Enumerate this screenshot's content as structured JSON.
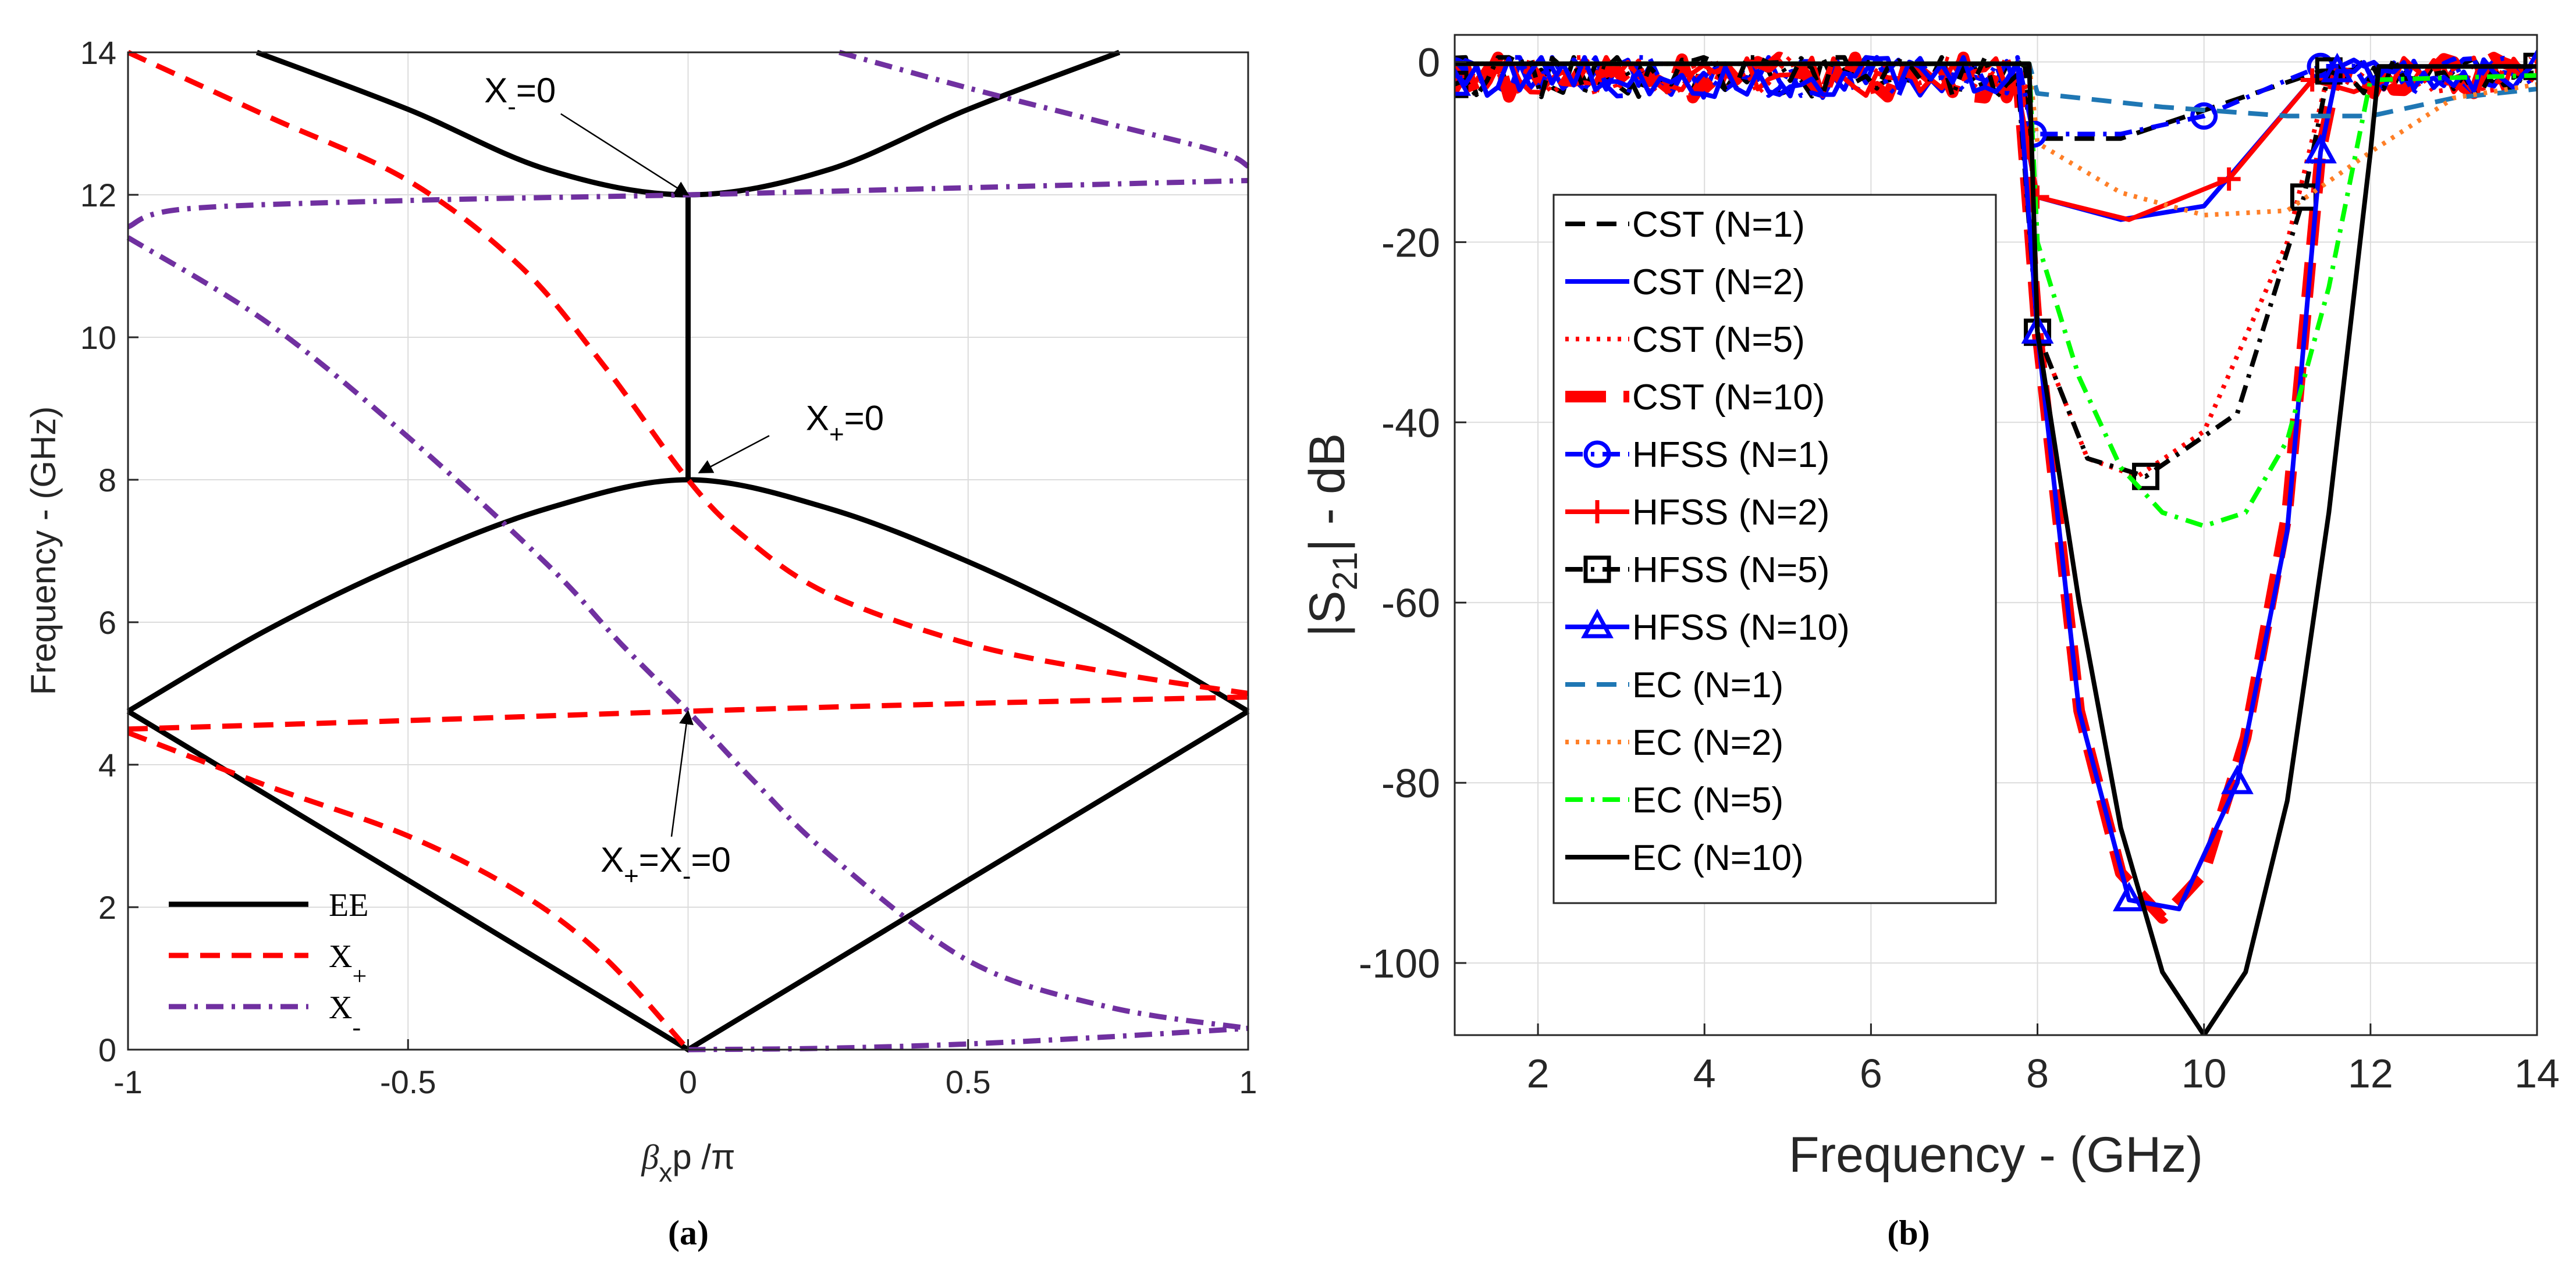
{
  "chart_data": [
    {
      "panel": "a",
      "type": "line",
      "caption": "(a)",
      "xlabel_parts": [
        "β",
        "x",
        "p /π"
      ],
      "ylabel": "Frequency - (GHz)",
      "xlim": [
        -1,
        1
      ],
      "ylim": [
        0,
        14
      ],
      "xticks": [
        -1,
        -0.5,
        0,
        0.5,
        1
      ],
      "xtick_labels": [
        "-1",
        "-0.5",
        "0",
        "0.5",
        "1"
      ],
      "yticks": [
        0,
        2,
        4,
        6,
        8,
        10,
        12,
        14
      ],
      "ytick_labels": [
        "0",
        "2",
        "4",
        "6",
        "8",
        "10",
        "12",
        "14"
      ],
      "series": [
        {
          "name": "EE",
          "legend_label": "EE",
          "color": "#000000",
          "style": "solid",
          "segments": [
            [
              [
                -1,
                4.75
              ],
              [
                -0.75,
                5.9
              ],
              [
                -0.5,
                6.85
              ],
              [
                -0.25,
                7.6
              ],
              [
                0,
                8.0
              ],
              [
                0.25,
                7.6
              ],
              [
                0.5,
                6.85
              ],
              [
                0.75,
                5.9
              ],
              [
                1,
                4.75
              ]
            ],
            [
              [
                -1,
                4.75
              ],
              [
                -0.5,
                2.38
              ],
              [
                0,
                0
              ],
              [
                0.5,
                2.38
              ],
              [
                1,
                4.75
              ]
            ],
            [
              [
                -0.77,
                14.0
              ],
              [
                -0.5,
                13.2
              ],
              [
                -0.25,
                12.35
              ],
              [
                0,
                12.0
              ],
              [
                0.25,
                12.35
              ],
              [
                0.5,
                13.2
              ],
              [
                0.77,
                14.0
              ]
            ],
            [
              [
                0,
                8.0
              ],
              [
                0,
                12.0
              ]
            ]
          ]
        },
        {
          "name": "X+",
          "legend_label": "X",
          "legend_sub": "+",
          "color": "#ff0000",
          "style": "dashed",
          "segments": [
            [
              [
                -1,
                14.0
              ],
              [
                -0.75,
                13.1
              ],
              [
                -0.5,
                12.2
              ],
              [
                -0.3,
                11.0
              ],
              [
                -0.15,
                9.6
              ],
              [
                0,
                8.0
              ],
              [
                0.1,
                7.2
              ],
              [
                0.25,
                6.4
              ],
              [
                0.5,
                5.7
              ],
              [
                0.75,
                5.3
              ],
              [
                1,
                5.0
              ]
            ],
            [
              [
                -1,
                4.5
              ],
              [
                -0.5,
                4.62
              ],
              [
                0,
                4.75
              ],
              [
                0.5,
                4.86
              ],
              [
                1,
                4.95
              ]
            ],
            [
              [
                -1,
                4.45
              ],
              [
                -0.75,
                3.7
              ],
              [
                -0.5,
                3.0
              ],
              [
                -0.3,
                2.2
              ],
              [
                -0.15,
                1.3
              ],
              [
                0,
                0
              ]
            ]
          ]
        },
        {
          "name": "X-",
          "legend_label": "X",
          "legend_sub": "-",
          "color": "#7030a0",
          "style": "dashdot",
          "segments": [
            [
              [
                0.27,
                14.0
              ],
              [
                0.5,
                13.5
              ],
              [
                0.75,
                13.0
              ],
              [
                0.95,
                12.6
              ],
              [
                1,
                12.4
              ]
            ],
            [
              [
                -1,
                11.55
              ],
              [
                -0.9,
                11.8
              ],
              [
                -0.5,
                11.92
              ],
              [
                0,
                12.0
              ],
              [
                0.5,
                12.1
              ],
              [
                1,
                12.2
              ]
            ],
            [
              [
                -1,
                11.4
              ],
              [
                -0.75,
                10.2
              ],
              [
                -0.5,
                8.6
              ],
              [
                -0.25,
                6.8
              ],
              [
                -0.12,
                5.7
              ],
              [
                0,
                4.75
              ],
              [
                0.12,
                3.75
              ],
              [
                0.25,
                2.75
              ],
              [
                0.5,
                1.25
              ],
              [
                0.75,
                0.6
              ],
              [
                1,
                0.3
              ]
            ],
            [
              [
                0,
                0
              ],
              [
                0.25,
                0.02
              ],
              [
                0.5,
                0.08
              ],
              [
                0.75,
                0.18
              ],
              [
                1,
                0.3
              ]
            ]
          ]
        }
      ],
      "annotations": [
        {
          "text": "X",
          "sub": "-",
          "tail": "=0",
          "point": [
            0,
            12.0
          ],
          "label_at": [
            -0.3,
            13.3
          ]
        },
        {
          "text": "X",
          "sub": "+",
          "tail": "=0",
          "point": [
            0.02,
            8.1
          ],
          "label_at": [
            0.28,
            8.7
          ]
        },
        {
          "text": "X",
          "sub": "+",
          "mid": "=X",
          "sub2": "-",
          "tail": "=0",
          "point": [
            0,
            4.75
          ],
          "label_at": [
            -0.04,
            2.5
          ]
        }
      ]
    },
    {
      "panel": "b",
      "type": "line",
      "caption": "(b)",
      "xlabel": "Frequency - (GHz)",
      "ylabel_parts": [
        "|S",
        "21",
        "| - dB"
      ],
      "xlim": [
        1,
        14
      ],
      "ylim": [
        -108,
        3
      ],
      "xticks": [
        2,
        4,
        6,
        8,
        10,
        12,
        14
      ],
      "xtick_labels": [
        "2",
        "4",
        "6",
        "8",
        "10",
        "12",
        "14"
      ],
      "yticks": [
        0,
        -20,
        -40,
        -60,
        -80,
        -100
      ],
      "ytick_labels": [
        "0",
        "-20",
        "-40",
        "-60",
        "-80",
        "-100"
      ],
      "series": [
        {
          "name": "CST (N=1)",
          "color": "#000000",
          "style": "dashed",
          "marker": "none",
          "points": [
            [
              1,
              -0.5
            ],
            [
              7.85,
              -0.5
            ],
            [
              7.9,
              -8.5
            ],
            [
              9,
              -8.5
            ],
            [
              11.4,
              -1
            ],
            [
              14,
              -0.5
            ]
          ]
        },
        {
          "name": "CST (N=2)",
          "color": "#0000ff",
          "style": "solid",
          "marker": "none",
          "points": [
            [
              1,
              -2
            ],
            [
              7.8,
              -3
            ],
            [
              8,
              -15
            ],
            [
              9,
              -17.5
            ],
            [
              10,
              -16
            ],
            [
              11.3,
              -2
            ],
            [
              14,
              -0.5
            ]
          ]
        },
        {
          "name": "CST (N=5)",
          "color": "#ff0000",
          "style": "dotted",
          "marker": "none",
          "points": [
            [
              1,
              -1.5
            ],
            [
              7.9,
              -3
            ],
            [
              8,
              -30
            ],
            [
              8.6,
              -44
            ],
            [
              9.2,
              -46
            ],
            [
              10,
              -41
            ],
            [
              11,
              -20
            ],
            [
              11.5,
              -1
            ],
            [
              14,
              -0.5
            ]
          ]
        },
        {
          "name": "CST (N=10)",
          "color": "#ff0000",
          "style": "bolddashed",
          "marker": "none",
          "points": [
            [
              1,
              -1.5
            ],
            [
              7.8,
              -2
            ],
            [
              8,
              -30
            ],
            [
              8.5,
              -72
            ],
            [
              9,
              -90
            ],
            [
              9.5,
              -95
            ],
            [
              10,
              -90
            ],
            [
              10.5,
              -75
            ],
            [
              11,
              -50
            ],
            [
              11.4,
              -10
            ],
            [
              11.6,
              -1
            ],
            [
              14,
              -0.5
            ]
          ]
        },
        {
          "name": "HFSS (N=1)",
          "color": "#0000ff",
          "style": "dashdot",
          "marker": "circle",
          "points": [
            [
              1,
              -1
            ],
            [
              7.8,
              -1.5
            ],
            [
              7.95,
              -8
            ],
            [
              9,
              -8
            ],
            [
              10,
              -6
            ],
            [
              11,
              -2
            ],
            [
              11.4,
              -0.5
            ],
            [
              14,
              -0.5
            ]
          ]
        },
        {
          "name": "HFSS (N=2)",
          "color": "#ff0000",
          "style": "solid",
          "marker": "plus",
          "points": [
            [
              1,
              -2.5
            ],
            [
              7.8,
              -3
            ],
            [
              8,
              -15
            ],
            [
              9.1,
              -17.5
            ],
            [
              10.3,
              -13
            ],
            [
              11.3,
              -2
            ],
            [
              14,
              -0.5
            ]
          ]
        },
        {
          "name": "HFSS (N=5)",
          "color": "#000000",
          "style": "dashdot",
          "marker": "square",
          "points": [
            [
              1,
              -2.5
            ],
            [
              7.8,
              -3
            ],
            [
              8,
              -30
            ],
            [
              8.6,
              -44
            ],
            [
              9.3,
              -46
            ],
            [
              10.4,
              -39
            ],
            [
              11.2,
              -15
            ],
            [
              11.5,
              -1
            ],
            [
              14,
              -0.5
            ]
          ]
        },
        {
          "name": "HFSS (N=10)",
          "color": "#0000ff",
          "style": "solid",
          "marker": "triangle",
          "points": [
            [
              1,
              -2.5
            ],
            [
              7.8,
              -3
            ],
            [
              8,
              -30
            ],
            [
              8.5,
              -72
            ],
            [
              9.1,
              -93
            ],
            [
              9.7,
              -94
            ],
            [
              10.4,
              -80
            ],
            [
              11,
              -52
            ],
            [
              11.4,
              -10
            ],
            [
              11.6,
              -1
            ],
            [
              14,
              -0.5
            ]
          ]
        },
        {
          "name": "EC (N=1)",
          "color": "#1f77b4",
          "style": "dashed",
          "marker": "none",
          "points": [
            [
              1,
              -0.2
            ],
            [
              7.9,
              -0.2
            ],
            [
              8,
              -3.5
            ],
            [
              9.5,
              -5
            ],
            [
              11,
              -6
            ],
            [
              12,
              -6
            ],
            [
              13,
              -4
            ],
            [
              14,
              -3
            ]
          ]
        },
        {
          "name": "EC (N=2)",
          "color": "#ff7f27",
          "style": "dotted",
          "marker": "none",
          "points": [
            [
              1,
              -0.2
            ],
            [
              7.9,
              -0.2
            ],
            [
              8,
              -9
            ],
            [
              9,
              -14.5
            ],
            [
              10,
              -17
            ],
            [
              11,
              -16.5
            ],
            [
              12,
              -10
            ],
            [
              13,
              -4
            ],
            [
              14,
              -2.5
            ]
          ]
        },
        {
          "name": "EC (N=5)",
          "color": "#00ff00",
          "style": "dashdot",
          "marker": "none",
          "points": [
            [
              1,
              -0.2
            ],
            [
              7.9,
              -0.2
            ],
            [
              8,
              -20
            ],
            [
              8.5,
              -35
            ],
            [
              9,
              -45
            ],
            [
              9.5,
              -50
            ],
            [
              10,
              -51.5
            ],
            [
              10.5,
              -50
            ],
            [
              11,
              -42
            ],
            [
              11.5,
              -25
            ],
            [
              12,
              -2
            ],
            [
              14,
              -1.5
            ]
          ]
        },
        {
          "name": "EC (N=10)",
          "color": "#000000",
          "style": "solid",
          "marker": "none",
          "points": [
            [
              1,
              -0.2
            ],
            [
              7.9,
              -0.2
            ],
            [
              8,
              -30
            ],
            [
              8.5,
              -60
            ],
            [
              9,
              -85
            ],
            [
              9.5,
              -101
            ],
            [
              10,
              -108
            ],
            [
              10.5,
              -101
            ],
            [
              11,
              -82
            ],
            [
              11.5,
              -50
            ],
            [
              12,
              -10
            ],
            [
              12.1,
              -0.5
            ],
            [
              14,
              -0.5
            ]
          ]
        }
      ]
    }
  ]
}
